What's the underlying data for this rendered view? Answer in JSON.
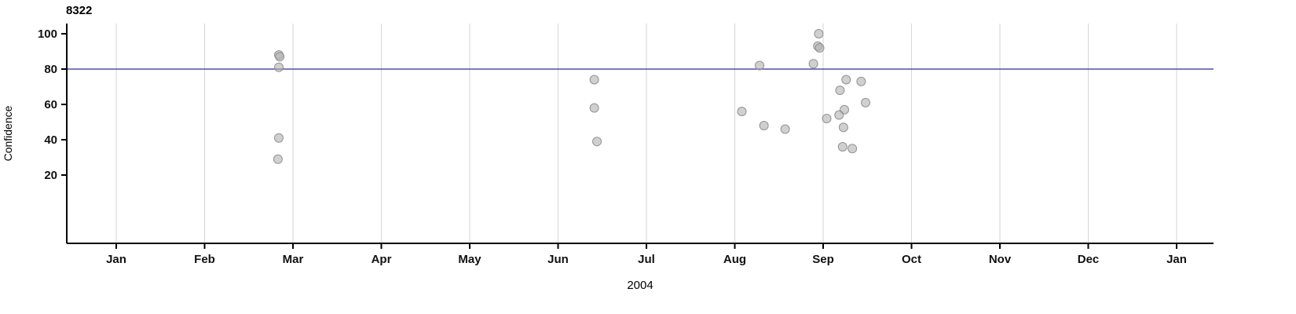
{
  "page": {
    "background_color": "#ffffff"
  },
  "chart_data": {
    "type": "scatter",
    "title": "8322",
    "xlabel": "2004",
    "ylabel": "Confidence",
    "x_tick_labels": [
      "Jan",
      "Feb",
      "Mar",
      "Apr",
      "May",
      "Jun",
      "Jul",
      "Aug",
      "Sep",
      "Oct",
      "Nov",
      "Dec",
      "Jan"
    ],
    "x_unit": "months-after-jan-1-2004",
    "x_range_months": [
      0,
      12
    ],
    "y_ticks": [
      20,
      40,
      60,
      80,
      100
    ],
    "ylim": [
      0,
      105
    ],
    "grid": "vertical-month-gridlines",
    "grid_color": "#d6d6d6",
    "legend": "none",
    "axis_color": "#000000",
    "reference_line": {
      "y": 80,
      "color": "#2e2e8f"
    },
    "point_style": {
      "fill": "#b0b0b0",
      "stroke": "#8a8a8a",
      "opacity": 0.6,
      "radius": 5.5
    },
    "points": [
      {
        "x": 1.84,
        "y": 88
      },
      {
        "x": 1.85,
        "y": 87
      },
      {
        "x": 1.84,
        "y": 81
      },
      {
        "x": 1.84,
        "y": 41
      },
      {
        "x": 1.83,
        "y": 29
      },
      {
        "x": 5.41,
        "y": 74
      },
      {
        "x": 5.41,
        "y": 58
      },
      {
        "x": 5.44,
        "y": 39
      },
      {
        "x": 7.08,
        "y": 56
      },
      {
        "x": 7.28,
        "y": 82
      },
      {
        "x": 7.33,
        "y": 48
      },
      {
        "x": 7.57,
        "y": 46
      },
      {
        "x": 7.89,
        "y": 83
      },
      {
        "x": 7.95,
        "y": 100
      },
      {
        "x": 7.94,
        "y": 93
      },
      {
        "x": 7.96,
        "y": 92
      },
      {
        "x": 8.04,
        "y": 52
      },
      {
        "x": 8.19,
        "y": 68
      },
      {
        "x": 8.26,
        "y": 74
      },
      {
        "x": 8.43,
        "y": 73
      },
      {
        "x": 8.24,
        "y": 57
      },
      {
        "x": 8.18,
        "y": 54
      },
      {
        "x": 8.23,
        "y": 47
      },
      {
        "x": 8.22,
        "y": 36
      },
      {
        "x": 8.33,
        "y": 35
      },
      {
        "x": 8.48,
        "y": 61
      }
    ]
  }
}
